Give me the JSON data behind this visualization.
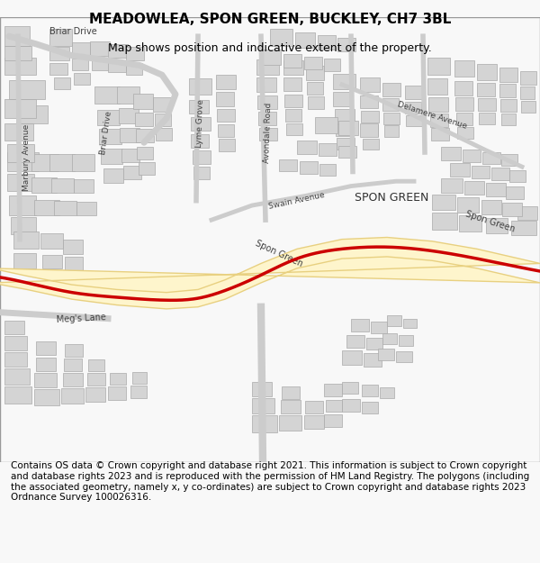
{
  "title": "MEADOWLEA, SPON GREEN, BUCKLEY, CH7 3BL",
  "subtitle": "Map shows position and indicative extent of the property.",
  "footer": "Contains OS data © Crown copyright and database right 2021. This information is subject to Crown copyright and database rights 2023 and is reproduced with the permission of HM Land Registry. The polygons (including the associated geometry, namely x, y co-ordinates) are subject to Crown copyright and database rights 2023 Ordnance Survey 100026316.",
  "bg_color": "#f8f8f8",
  "map_bg": "#ffffff",
  "building_color": "#d4d4d4",
  "building_edge": "#aaaaaa",
  "road_fill": "#fef5cc",
  "road_edge": "#e8d080",
  "highlight_color": "#cc0000",
  "highlight_lw": 2.5,
  "road_lw": 8,
  "title_fontsize": 11,
  "subtitle_fontsize": 9,
  "footer_fontsize": 7.5
}
